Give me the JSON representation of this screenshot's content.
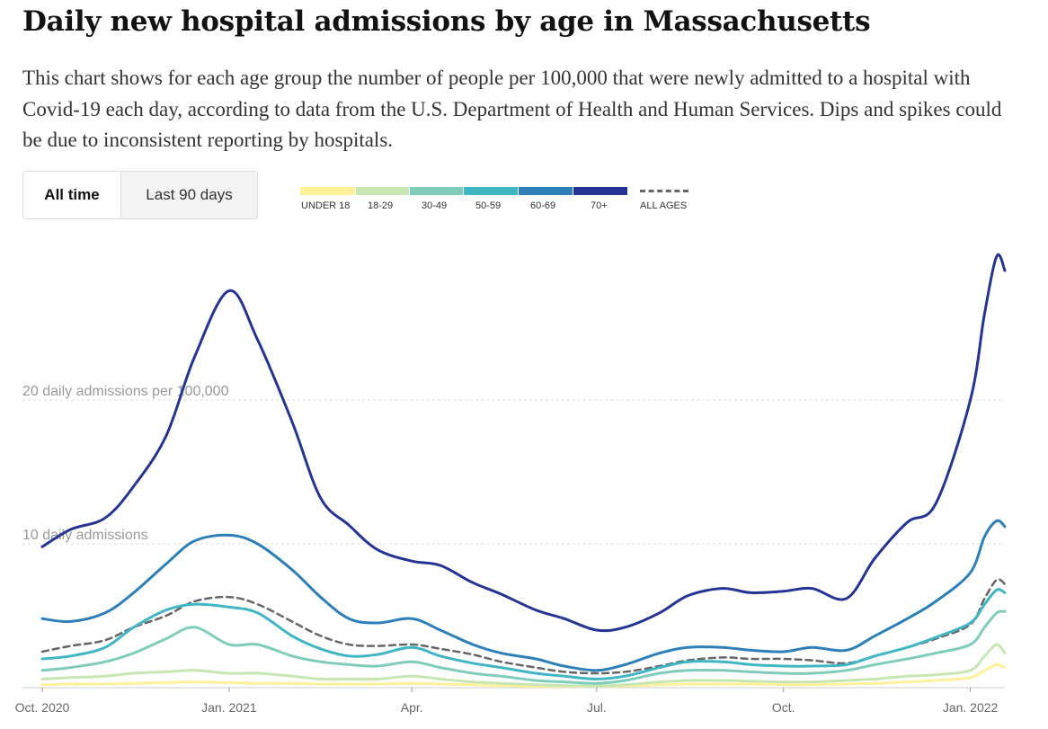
{
  "title": "Daily new hospital admissions by age in Massachusetts",
  "subtitle": "This chart shows for each age group the number of people per 100,000 that were newly admitted to a hospital with Covid-19 each day, according to data from the U.S. Department of Health and Human Services. Dips and spikes could be due to inconsistent reporting by hospitals.",
  "toggle": {
    "active_label": "All time",
    "inactive_label": "Last 90 days"
  },
  "legend": {
    "items": [
      {
        "label": "UNDER 18",
        "color": "#fff09a"
      },
      {
        "label": "18-29",
        "color": "#c6e7b4"
      },
      {
        "label": "30-49",
        "color": "#7fccbb"
      },
      {
        "label": "50-59",
        "color": "#40b5c4"
      },
      {
        "label": "60-69",
        "color": "#2c7fb8"
      },
      {
        "label": "70+",
        "color": "#253494"
      }
    ],
    "all_ages_label": "ALL AGES",
    "all_ages_color": "#666666"
  },
  "chart_data": {
    "type": "line",
    "title": "Daily new hospital admissions by age in Massachusetts",
    "y_tick_labels": [
      {
        "value": 10,
        "label": "10 daily admissions"
      },
      {
        "value": 20,
        "label": "20 daily admissions per 100,000"
      }
    ],
    "x_tick_labels": [
      {
        "date": "2020-10-01",
        "label": "Oct. 2020"
      },
      {
        "date": "2021-01-01",
        "label": "Jan. 2021"
      },
      {
        "date": "2021-04-01",
        "label": "Apr."
      },
      {
        "date": "2021-07-01",
        "label": "Jul."
      },
      {
        "date": "2021-10-01",
        "label": "Oct."
      },
      {
        "date": "2022-01-01",
        "label": "Jan. 2022"
      }
    ],
    "x_range": [
      "2020-10-01",
      "2022-01-18"
    ],
    "ylim": [
      0,
      30
    ],
    "grid": "horizontal dashed",
    "x": [
      "2020-10-01",
      "2020-10-15",
      "2020-11-01",
      "2020-11-15",
      "2020-12-01",
      "2020-12-15",
      "2021-01-01",
      "2021-01-15",
      "2021-02-01",
      "2021-02-15",
      "2021-03-01",
      "2021-03-15",
      "2021-04-01",
      "2021-04-15",
      "2021-05-01",
      "2021-05-15",
      "2021-06-01",
      "2021-06-15",
      "2021-07-01",
      "2021-07-15",
      "2021-08-01",
      "2021-08-15",
      "2021-09-01",
      "2021-09-15",
      "2021-10-01",
      "2021-10-15",
      "2021-11-01",
      "2021-11-15",
      "2021-12-01",
      "2021-12-15",
      "2022-01-01",
      "2022-01-08",
      "2022-01-14",
      "2022-01-18"
    ],
    "series": [
      {
        "name": "70+",
        "color": "#253494",
        "values": [
          9.8,
          11.0,
          11.8,
          14.0,
          17.5,
          23.0,
          27.6,
          24.2,
          18.5,
          13.2,
          11.3,
          9.6,
          8.8,
          8.5,
          7.3,
          6.5,
          5.4,
          4.8,
          4.0,
          4.2,
          5.2,
          6.4,
          6.9,
          6.6,
          6.7,
          6.9,
          6.2,
          9.0,
          11.5,
          12.8,
          20.0,
          26.0,
          30.0,
          29.0
        ]
      },
      {
        "name": "60-69",
        "color": "#2c7fb8",
        "values": [
          4.8,
          4.6,
          5.2,
          6.6,
          8.6,
          10.2,
          10.6,
          10.0,
          8.2,
          6.3,
          4.8,
          4.5,
          4.8,
          4.0,
          3.0,
          2.4,
          2.0,
          1.5,
          1.2,
          1.6,
          2.4,
          2.8,
          2.8,
          2.6,
          2.5,
          2.8,
          2.6,
          3.6,
          4.8,
          6.0,
          8.0,
          10.5,
          11.6,
          11.2
        ]
      },
      {
        "name": "50-59",
        "color": "#40b5c4",
        "values": [
          2.0,
          2.2,
          2.8,
          4.2,
          5.4,
          5.8,
          5.6,
          5.2,
          3.6,
          2.7,
          2.2,
          2.3,
          2.8,
          2.2,
          1.7,
          1.4,
          1.0,
          0.8,
          0.6,
          0.8,
          1.4,
          1.8,
          1.8,
          1.6,
          1.5,
          1.5,
          1.6,
          2.2,
          2.8,
          3.5,
          4.5,
          5.8,
          6.8,
          6.6
        ]
      },
      {
        "name": "30-49",
        "color": "#7fccbb",
        "values": [
          1.2,
          1.4,
          1.8,
          2.4,
          3.4,
          4.2,
          3.0,
          3.0,
          2.2,
          1.8,
          1.6,
          1.5,
          1.8,
          1.4,
          1.0,
          0.8,
          0.5,
          0.4,
          0.3,
          0.5,
          1.0,
          1.2,
          1.2,
          1.1,
          1.0,
          1.0,
          1.2,
          1.6,
          2.0,
          2.4,
          3.0,
          4.2,
          5.2,
          5.3
        ]
      },
      {
        "name": "18-29",
        "color": "#c6e7b4",
        "values": [
          0.6,
          0.7,
          0.8,
          1.0,
          1.1,
          1.2,
          1.0,
          1.0,
          0.8,
          0.6,
          0.6,
          0.6,
          0.8,
          0.6,
          0.4,
          0.3,
          0.2,
          0.15,
          0.12,
          0.2,
          0.4,
          0.5,
          0.5,
          0.45,
          0.4,
          0.4,
          0.5,
          0.6,
          0.8,
          0.9,
          1.2,
          2.2,
          3.0,
          2.4
        ]
      },
      {
        "name": "UNDER 18",
        "color": "#fff09a",
        "values": [
          0.2,
          0.25,
          0.25,
          0.3,
          0.35,
          0.4,
          0.35,
          0.3,
          0.3,
          0.25,
          0.25,
          0.25,
          0.3,
          0.25,
          0.2,
          0.15,
          0.1,
          0.1,
          0.1,
          0.12,
          0.2,
          0.25,
          0.25,
          0.25,
          0.2,
          0.2,
          0.25,
          0.3,
          0.4,
          0.5,
          0.7,
          1.2,
          1.6,
          1.4
        ]
      },
      {
        "name": "ALL AGES",
        "color": "#666666",
        "dashed": true,
        "values": [
          2.5,
          2.9,
          3.3,
          4.2,
          5.0,
          6.0,
          6.3,
          5.8,
          4.6,
          3.6,
          3.0,
          2.9,
          3.0,
          2.7,
          2.3,
          1.8,
          1.4,
          1.1,
          1.0,
          1.1,
          1.5,
          1.9,
          2.1,
          2.0,
          2.0,
          1.9,
          1.7,
          2.2,
          2.8,
          3.4,
          4.4,
          6.2,
          7.5,
          7.2
        ]
      }
    ]
  }
}
